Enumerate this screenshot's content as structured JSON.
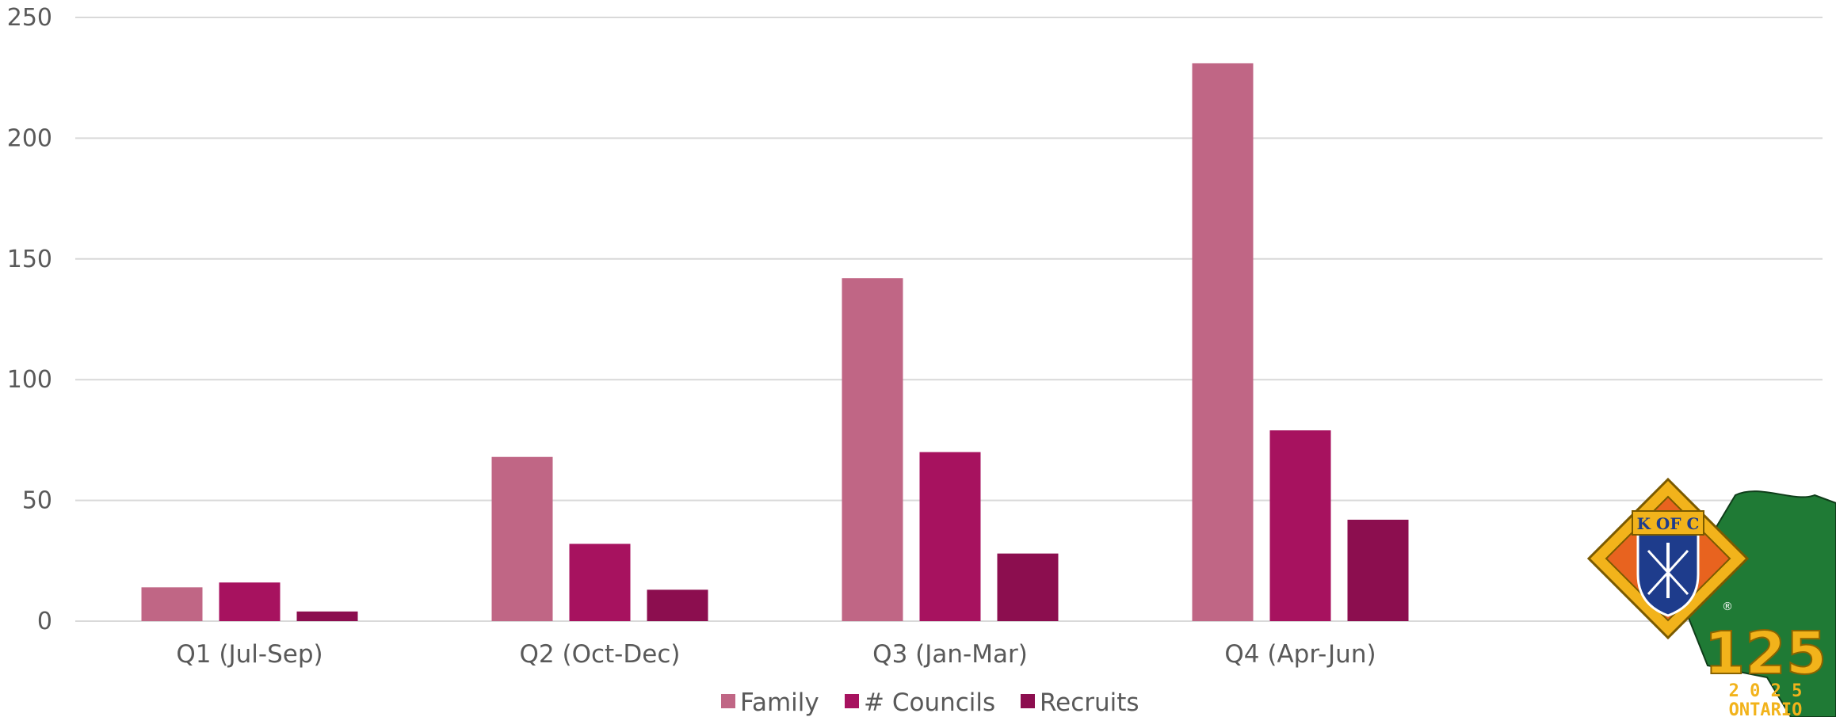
{
  "chart_data": {
    "type": "bar",
    "categories": [
      "Q1 (Jul-Sep)",
      "Q2 (Oct-Dec)",
      "Q3 (Jan-Mar)",
      "Q4 (Apr-Jun)"
    ],
    "series": [
      {
        "name": "Family",
        "values": [
          14,
          68,
          142,
          231
        ],
        "color": "#c06685"
      },
      {
        "name": "# Councils",
        "values": [
          16,
          32,
          70,
          79
        ],
        "color": "#a7125f"
      },
      {
        "name": "Recruits",
        "values": [
          4,
          13,
          28,
          42
        ],
        "color": "#8c0e4f"
      }
    ],
    "ylim": [
      0,
      250
    ],
    "yticks": [
      "0",
      "50",
      "100",
      "150",
      "200",
      "250"
    ],
    "grid": true,
    "legend": "bottom"
  },
  "logo": {
    "emblem_text": "K OF C",
    "number": "125",
    "year": "2 0 2 5",
    "province": "ONTARIO",
    "mark": "®"
  }
}
